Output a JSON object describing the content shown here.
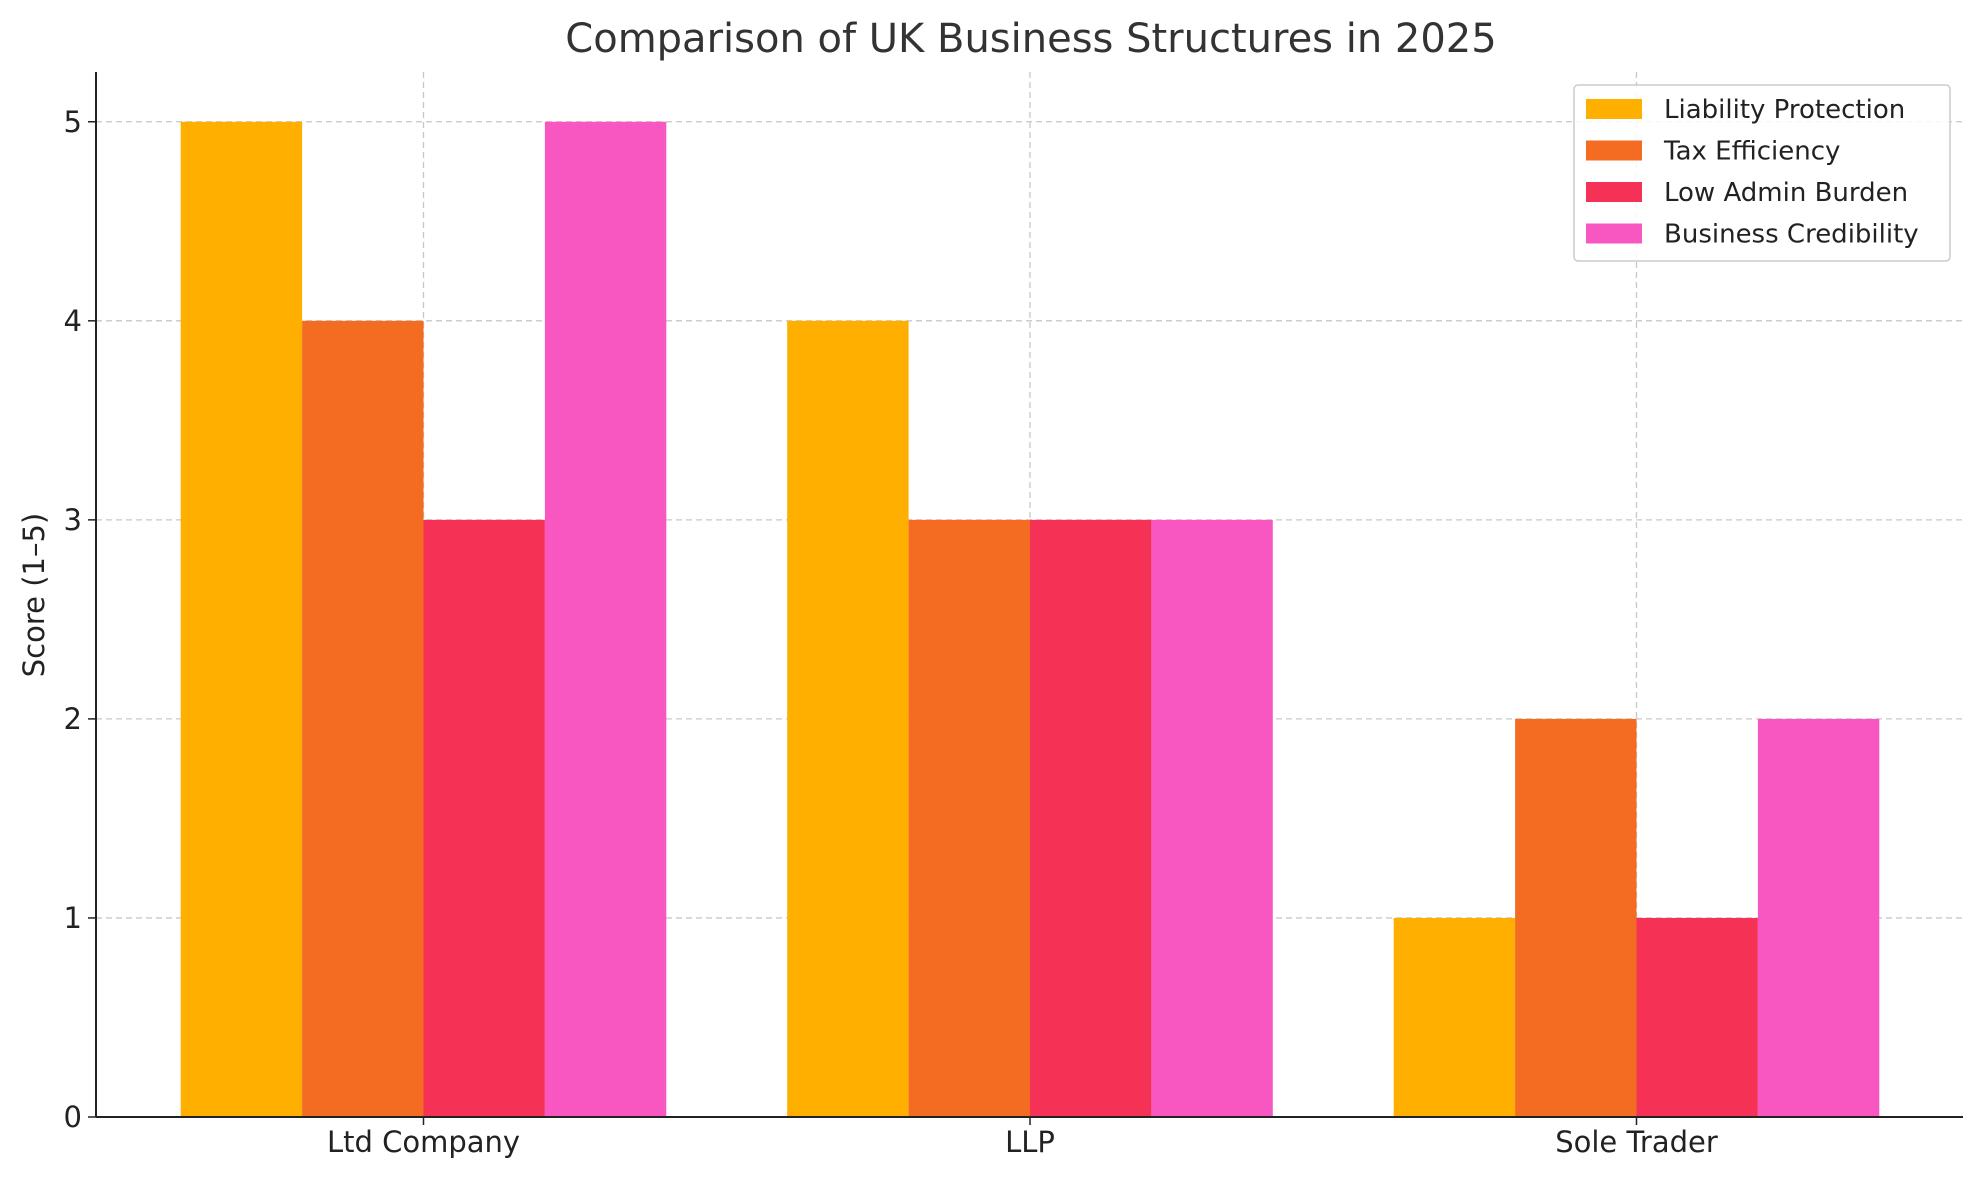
{
  "chart_data": {
    "type": "bar",
    "title": "Comparison of UK Business Structures in 2025",
    "xlabel": "",
    "ylabel": "Score (1–5)",
    "categories": [
      "Ltd Company",
      "LLP",
      "Sole Trader"
    ],
    "ylim": [
      0,
      5.25
    ],
    "yticks": [
      "0",
      "1",
      "2",
      "3",
      "4",
      "5"
    ],
    "grid": true,
    "legend_position": "top-right",
    "series": [
      {
        "name": "Liability Protection",
        "color": "#FFAF00",
        "values": [
          5,
          4,
          1
        ]
      },
      {
        "name": "Tax Efficiency",
        "color": "#F46B22",
        "values": [
          4,
          3,
          2
        ]
      },
      {
        "name": "Low Admin Burden",
        "color": "#F53255",
        "values": [
          3,
          3,
          1
        ]
      },
      {
        "name": "Business Credibility",
        "color": "#F857C1",
        "values": [
          5,
          3,
          2
        ]
      }
    ]
  }
}
